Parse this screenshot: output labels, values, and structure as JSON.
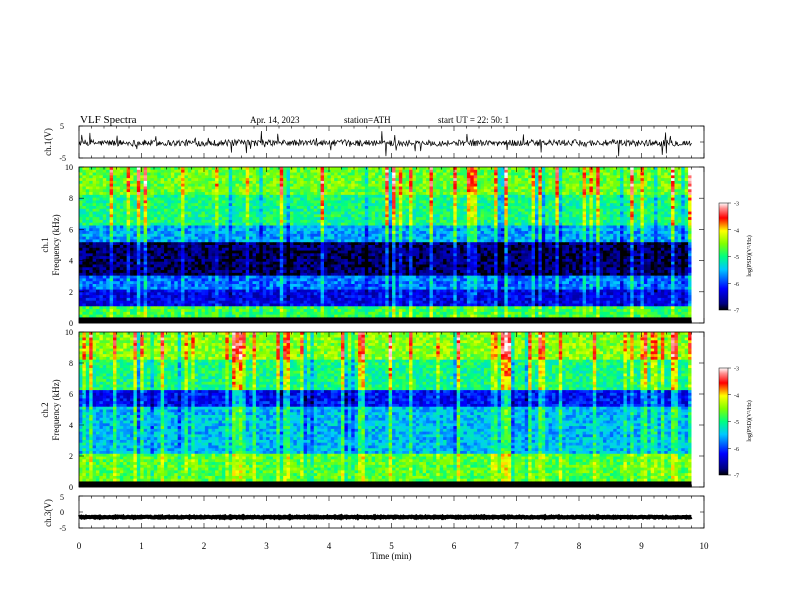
{
  "header": {
    "title": "VLF  Spectra",
    "date": "Apr. 14, 2023",
    "station": "station=ATH",
    "start": "start  UT  =    22: 50: 1"
  },
  "chart_data": [
    {
      "type": "line",
      "ylabel": "ch.1(V)",
      "ylim": [
        -5,
        5
      ],
      "yticks": [
        "5",
        "-5"
      ],
      "xlim": [
        0,
        10
      ],
      "series": [
        {
          "mean": -0.3,
          "spread": 2.0,
          "spikes": true
        }
      ]
    },
    {
      "type": "heatmap",
      "ylabel": "ch.1\nFrequency  (kHz)",
      "ylim": [
        0,
        10
      ],
      "yticks": [
        "0",
        "2",
        "4",
        "6",
        "8",
        "10"
      ],
      "xlim": [
        0,
        9.8
      ],
      "zlim": [
        -7,
        -3
      ],
      "colorbar": {
        "label": "log(PSD)(V²/Hz)",
        "ticks": [
          "-3",
          "-4",
          "-5",
          "-6",
          "-7"
        ]
      },
      "bands_khz": [
        {
          "from": 0,
          "to": 0.3,
          "level": -7.0
        },
        {
          "from": 0.3,
          "to": 1.0,
          "level": -4.8
        },
        {
          "from": 1.0,
          "to": 2.2,
          "level": -6.3
        },
        {
          "from": 2.2,
          "to": 3.0,
          "level": -5.8
        },
        {
          "from": 3.0,
          "to": 5.2,
          "level": -6.8
        },
        {
          "from": 5.2,
          "to": 6.2,
          "level": -5.6
        },
        {
          "from": 6.2,
          "to": 8.2,
          "level": -5.0
        },
        {
          "from": 8.2,
          "to": 10,
          "level": -4.6
        }
      ]
    },
    {
      "type": "heatmap",
      "ylabel": "ch.2\nFrequency  (kHz)",
      "ylim": [
        0,
        10
      ],
      "yticks": [
        "0",
        "2",
        "4",
        "6",
        "8",
        "10"
      ],
      "xlim": [
        0,
        9.8
      ],
      "zlim": [
        -7,
        -3
      ],
      "colorbar": {
        "label": "log(PSD)(V²/Hz)",
        "ticks": [
          "-3",
          "-4",
          "-5",
          "-6",
          "-7"
        ]
      },
      "bands_khz": [
        {
          "from": 0,
          "to": 0.3,
          "level": -7.0
        },
        {
          "from": 0.3,
          "to": 2.2,
          "level": -4.7
        },
        {
          "from": 2.2,
          "to": 5.2,
          "level": -5.5
        },
        {
          "from": 5.2,
          "to": 6.2,
          "level": -6.2
        },
        {
          "from": 6.2,
          "to": 8.2,
          "level": -5.0
        },
        {
          "from": 8.2,
          "to": 10,
          "level": -4.5
        }
      ]
    },
    {
      "type": "line",
      "ylabel": "ch.3(V)",
      "ylim": [
        -5,
        5
      ],
      "yticks": [
        "5",
        "0",
        "-5"
      ],
      "xlim": [
        0,
        10
      ],
      "series": [
        {
          "mean": -1.6,
          "spread": 0.3,
          "spikes": false
        }
      ]
    }
  ],
  "xaxis": {
    "label": "Time  (min)",
    "ticks": [
      "0",
      "1",
      "2",
      "3",
      "4",
      "5",
      "6",
      "7",
      "8",
      "9",
      "10"
    ],
    "range": [
      0,
      10
    ]
  }
}
